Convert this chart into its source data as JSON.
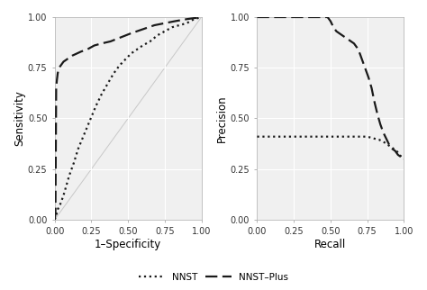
{
  "roc_nnst_x": [
    0.0,
    0.01,
    0.02,
    0.04,
    0.06,
    0.08,
    0.1,
    0.13,
    0.16,
    0.2,
    0.24,
    0.28,
    0.32,
    0.36,
    0.4,
    0.44,
    0.48,
    0.52,
    0.56,
    0.6,
    0.65,
    0.7,
    0.75,
    0.8,
    0.85,
    0.9,
    0.95,
    1.0
  ],
  "roc_nnst_y": [
    0.0,
    0.02,
    0.05,
    0.08,
    0.12,
    0.17,
    0.22,
    0.28,
    0.35,
    0.42,
    0.49,
    0.56,
    0.62,
    0.67,
    0.72,
    0.76,
    0.79,
    0.82,
    0.84,
    0.86,
    0.88,
    0.91,
    0.93,
    0.95,
    0.96,
    0.97,
    0.99,
    1.0
  ],
  "roc_nnstplus_x": [
    0.0,
    0.005,
    0.01,
    0.015,
    0.02,
    0.025,
    0.03,
    0.04,
    0.05,
    0.06,
    0.08,
    0.1,
    0.12,
    0.15,
    0.18,
    0.22,
    0.27,
    0.32,
    0.38,
    0.45,
    0.52,
    0.6,
    0.68,
    0.75,
    0.82,
    0.9,
    1.0
  ],
  "roc_nnstplus_y": [
    0.0,
    0.03,
    0.65,
    0.69,
    0.72,
    0.74,
    0.75,
    0.76,
    0.77,
    0.78,
    0.79,
    0.8,
    0.81,
    0.82,
    0.83,
    0.84,
    0.86,
    0.87,
    0.88,
    0.9,
    0.92,
    0.94,
    0.96,
    0.97,
    0.98,
    0.99,
    1.0
  ],
  "pr_nnst_x": [
    0.0,
    0.05,
    0.1,
    0.2,
    0.3,
    0.4,
    0.5,
    0.6,
    0.7,
    0.75,
    0.8,
    0.83,
    0.86,
    0.88,
    0.9,
    0.92,
    0.95,
    0.97,
    1.0
  ],
  "pr_nnst_y": [
    0.41,
    0.41,
    0.41,
    0.41,
    0.41,
    0.41,
    0.41,
    0.41,
    0.41,
    0.41,
    0.4,
    0.395,
    0.385,
    0.375,
    0.365,
    0.355,
    0.34,
    0.32,
    0.3
  ],
  "pr_nnstplus_x": [
    0.0,
    0.05,
    0.1,
    0.2,
    0.3,
    0.4,
    0.48,
    0.5,
    0.52,
    0.54,
    0.56,
    0.58,
    0.6,
    0.62,
    0.64,
    0.66,
    0.68,
    0.7,
    0.72,
    0.74,
    0.76,
    0.78,
    0.8,
    0.82,
    0.84,
    0.86,
    0.88,
    0.9,
    0.92,
    0.94,
    0.96,
    1.0
  ],
  "pr_nnstplus_y": [
    1.0,
    1.0,
    1.0,
    1.0,
    1.0,
    1.0,
    1.0,
    0.98,
    0.95,
    0.93,
    0.92,
    0.91,
    0.9,
    0.89,
    0.88,
    0.87,
    0.85,
    0.82,
    0.78,
    0.74,
    0.7,
    0.65,
    0.58,
    0.52,
    0.47,
    0.43,
    0.4,
    0.37,
    0.35,
    0.34,
    0.32,
    0.3
  ],
  "bg_color": "#f0f0f0",
  "line_color": "#1a1a1a",
  "diagonal_color": "#c8c8c8",
  "linewidth": 1.6,
  "xlabel_roc": "1–Specificity",
  "ylabel_roc": "Sensitivity",
  "xlabel_pr": "Recall",
  "ylabel_pr": "Precision",
  "xticks": [
    0.0,
    0.25,
    0.5,
    0.75,
    1.0
  ],
  "yticks": [
    0.0,
    0.25,
    0.5,
    0.75,
    1.0
  ],
  "legend_labels": [
    "NNST",
    "NNST–Plus"
  ],
  "tick_label_size": 7.0,
  "axis_label_size": 8.5
}
